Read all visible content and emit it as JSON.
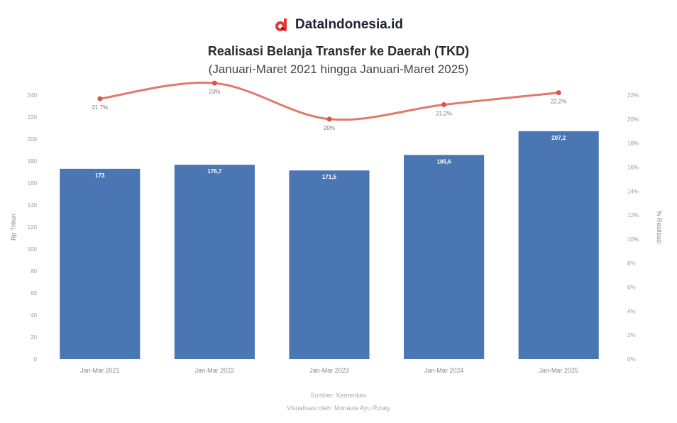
{
  "brand": {
    "name": "DataIndonesia.id",
    "logo_icon": "dataindonesia-logo-icon",
    "logo_color": "#e8342f"
  },
  "chart_data": {
    "type": "bar",
    "title": "Realisasi Belanja Transfer ke Daerah (TKD)",
    "subtitle": "(Januari-Maret 2021 hingga Januari-Maret 2025)",
    "categories": [
      "Jan-Mar 2021",
      "Jan-Mar 2022",
      "Jan-Mar 2023",
      "Jan-Mar 2024",
      "Jan-Mar 2025"
    ],
    "series": [
      {
        "type": "bar",
        "axis": "left",
        "color": "#4a77b4",
        "values": [
          173,
          176.7,
          171.5,
          185.6,
          207.2
        ],
        "labels": [
          "173",
          "176,7",
          "171,5",
          "185,6",
          "207,2"
        ]
      },
      {
        "type": "line",
        "axis": "right",
        "color": "#e07a6c",
        "values": [
          21.7,
          23,
          20,
          21.2,
          22.2
        ],
        "labels": [
          "21,7%",
          "23%",
          "20%",
          "21,2%",
          "22,2%"
        ]
      }
    ],
    "ylabel": "Rp Triliun",
    "y2label": "% Realisasi",
    "ylim": [
      0,
      240
    ],
    "yticks": [
      "0",
      "20",
      "40",
      "60",
      "80",
      "100",
      "120",
      "140",
      "160",
      "180",
      "200",
      "220",
      "240"
    ],
    "y2lim": [
      0,
      22
    ],
    "y2ticks": [
      "0%",
      "2%",
      "4%",
      "6%",
      "8%",
      "10%",
      "12%",
      "14%",
      "16%",
      "18%",
      "20%",
      "22%"
    ],
    "grid": false
  },
  "footer": {
    "source": "Sumber: Kemenkeu",
    "credit": "Visualisasi oleh: Monavia Ayu Rizaty"
  }
}
